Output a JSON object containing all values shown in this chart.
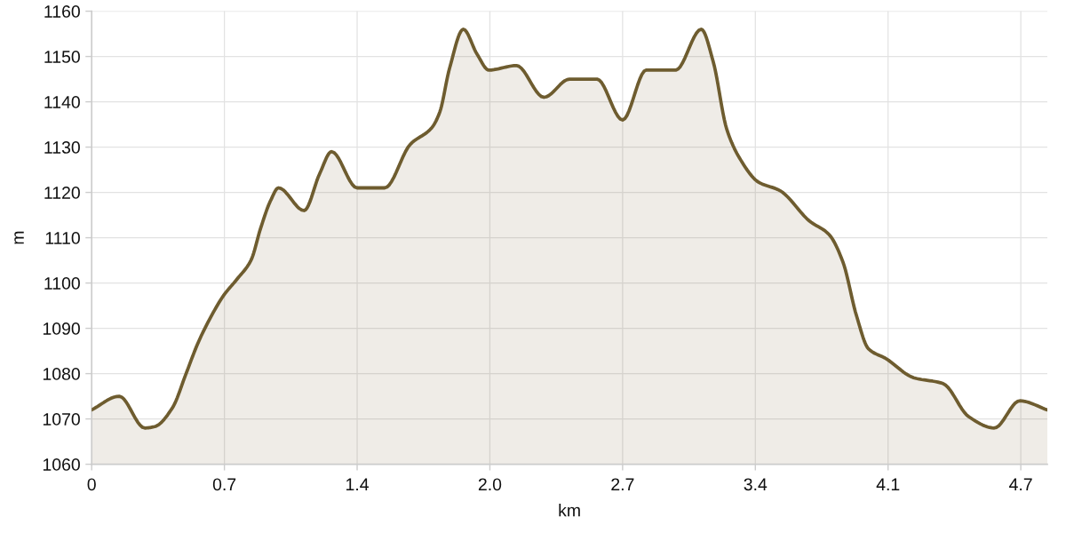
{
  "chart_data": {
    "type": "area",
    "xlabel": "km",
    "ylabel": "m",
    "x": [
      0,
      0.14,
      0.27,
      0.32,
      0.41,
      0.48,
      0.54,
      0.59,
      0.67,
      0.74,
      0.81,
      0.86,
      0.91,
      0.95,
      1.08,
      1.16,
      1.22,
      1.35,
      1.49,
      1.62,
      1.73,
      1.77,
      1.82,
      1.89,
      1.96,
      2.02,
      2.16,
      2.3,
      2.43,
      2.57,
      2.7,
      2.82,
      2.97,
      3.1,
      3.16,
      3.23,
      3.3,
      3.39,
      3.5,
      3.65,
      3.75,
      3.82,
      3.89,
      3.95,
      4.04,
      4.18,
      4.33,
      4.46,
      4.59,
      4.72,
      4.86
    ],
    "series": [
      {
        "color": "#6e5c2f",
        "values": [
          1072,
          1075,
          1068,
          1068.3,
          1072.4,
          1080,
          1086.7,
          1091.2,
          1097.2,
          1100.9,
          1105,
          1112.2,
          1118.2,
          1121,
          1116,
          1124.2,
          1129,
          1121,
          1121,
          1130.6,
          1134.3,
          1137.7,
          1147.4,
          1156,
          1150.5,
          1147,
          1148,
          1141,
          1145,
          1145,
          1136,
          1147,
          1147,
          1156,
          1149,
          1133.9,
          1127.2,
          1122.3,
          1120.4,
          1113.7,
          1110.7,
          1104.7,
          1092.7,
          1085.5,
          1083.3,
          1079.1,
          1077.8,
          1070.5,
          1068,
          1074,
          1072
        ]
      }
    ],
    "xlim": [
      0,
      4.86
    ],
    "ylim": [
      1060,
      1160
    ],
    "xticks": [
      0,
      {
        "value": 0.675,
        "label": "0.7"
      },
      {
        "value": 1.35,
        "label": "1.4"
      },
      {
        "value": 2.025,
        "label": "2.0"
      },
      {
        "value": 2.7,
        "label": "2.7"
      },
      {
        "value": 3.375,
        "label": "3.4"
      },
      {
        "value": 4.05,
        "label": "4.1"
      },
      {
        "value": 4.725,
        "label": "4.7"
      }
    ],
    "yticks": [
      1060,
      1070,
      1080,
      1090,
      1100,
      1110,
      1120,
      1130,
      1140,
      1150,
      1160
    ],
    "grid": true
  }
}
